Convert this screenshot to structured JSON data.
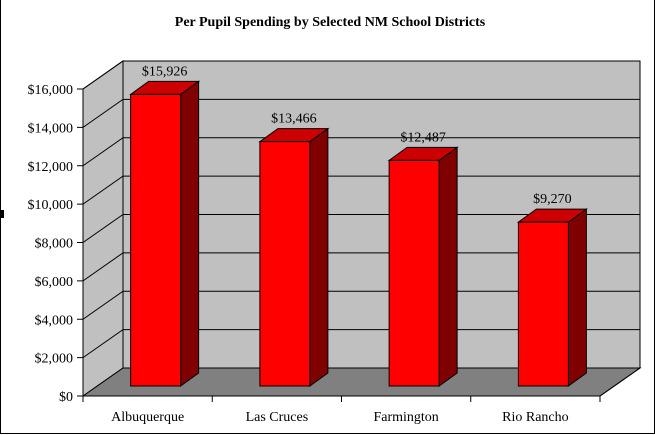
{
  "chart_data": {
    "type": "bar",
    "title": "Per Pupil Spending by Selected NM School Districts",
    "categories": [
      "Albuquerque",
      "Las Cruces",
      "Farmington",
      "Rio Rancho"
    ],
    "values": [
      15926,
      13466,
      12487,
      9270
    ],
    "data_labels": [
      "$15,926",
      "$13,466",
      "$12,487",
      "$9,270"
    ],
    "ytick_labels": [
      "$0",
      "$2,000",
      "$4,000",
      "$6,000",
      "$8,000",
      "$10,000",
      "$12,000",
      "$14,000",
      "$16,000"
    ],
    "ylim": [
      0,
      16000
    ],
    "xlabel": "",
    "ylabel": "",
    "grid": true,
    "legend": "none",
    "style": "3d",
    "colors": {
      "bar_front": "#ff0000",
      "bar_top": "#cc0000",
      "bar_side": "#800000",
      "back_wall": "#c0c0c0",
      "side_wall": "#c0c0c0",
      "floor": "#808080",
      "gridline": "#000000"
    }
  }
}
